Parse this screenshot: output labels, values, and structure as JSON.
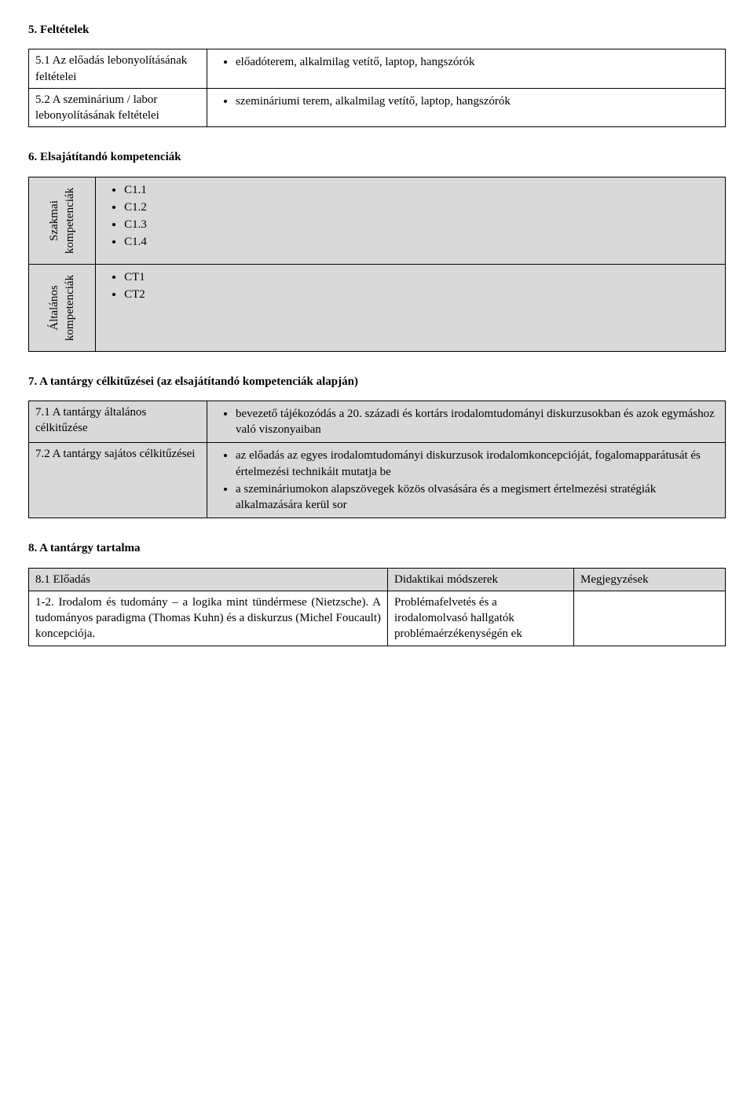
{
  "section5": {
    "heading": "5. Feltételek",
    "rows": [
      {
        "label": "5.1 Az előadás lebonyolításának feltételei",
        "bullet": "előadóterem, alkalmilag vetítő, laptop, hangszórók"
      },
      {
        "label": "5.2 A szeminárium / labor lebonyolításának feltételei",
        "bullet": "szemináriumi terem, alkalmilag vetítő, laptop, hangszórók"
      }
    ]
  },
  "section6": {
    "heading": "6. Elsajátítandó kompetenciák",
    "groups": [
      {
        "vlabel": "Szakmai\nkompetenciák",
        "items": [
          "C1.1",
          "C1.2",
          "C1.3",
          "C1.4"
        ]
      },
      {
        "vlabel": "Általános\nkompetenciák",
        "items": [
          "CT1",
          "CT2"
        ]
      }
    ]
  },
  "section7": {
    "heading": "7. A tantárgy célkitűzései (az elsajátítandó kompetenciák alapján)",
    "rows": [
      {
        "label": "7.1 A tantárgy általános célkitűzése",
        "bullets": [
          "bevezető tájékozódás a 20. századi és kortárs irodalomtudományi diskurzusokban és azok egymáshoz való viszonyaiban"
        ]
      },
      {
        "label": "7.2 A tantárgy sajátos célkitűzései",
        "bullets": [
          "az előadás az egyes irodalomtudományi diskurzusok irodalomkoncepcióját, fogalomapparátusát és értelmezési technikáit mutatja be",
          "a szemináriumokon alapszövegek közös olvasására és a megismert értelmezési stratégiák alkalmazására kerül sor"
        ]
      }
    ]
  },
  "section8": {
    "heading": "8. A tantárgy tartalma",
    "header": [
      "8.1 Előadás",
      "Didaktikai módszerek",
      "Megjegyzések"
    ],
    "row": {
      "c1": "1-2. Irodalom és tudomány – a logika mint tündérmese (Nietzsche). A tudományos paradigma (Thomas Kuhn) és a diskurzus (Michel Foucault) koncepciója.",
      "c2": "Problémafelvetés és a irodalomolvasó hallgatók problémaérzékenységén ek",
      "c3": ""
    }
  },
  "colors": {
    "grey": "#d9d9d9",
    "border": "#000000",
    "background": "#ffffff",
    "text": "#000000"
  },
  "fonts": {
    "family": "Times New Roman",
    "body_size_pt": 12,
    "heading_weight": "bold"
  }
}
